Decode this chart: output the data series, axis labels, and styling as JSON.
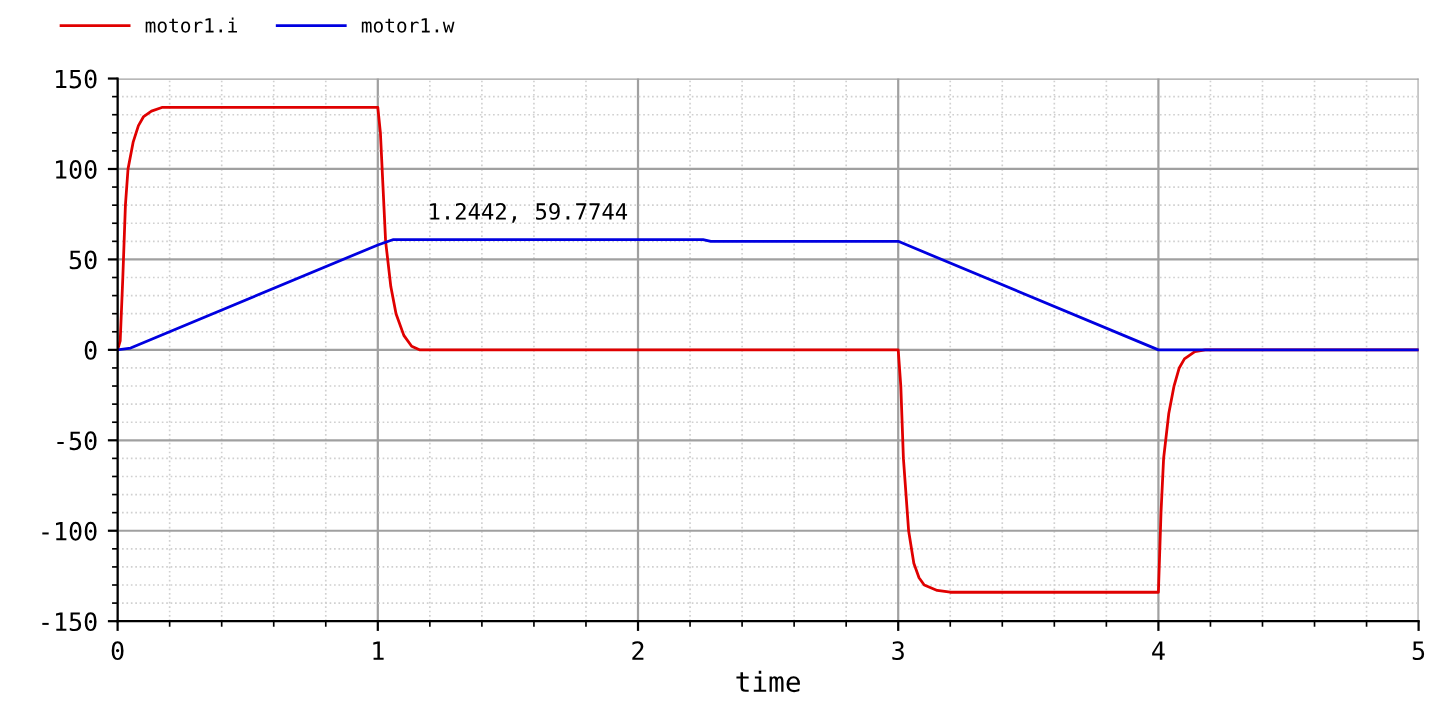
{
  "chart_data": {
    "type": "line",
    "xlabel": "time",
    "xlim": [
      0,
      5
    ],
    "ylim": [
      -150,
      150
    ],
    "xticks": [
      0,
      1,
      2,
      3,
      4,
      5
    ],
    "yticks": [
      -150,
      -100,
      -50,
      0,
      50,
      100,
      150
    ],
    "grid": true,
    "legend": "top left",
    "marker": "none",
    "line_style": "solid",
    "annotations": [
      {
        "text": "1.2442, 59.7744",
        "x": 1.2442,
        "y": 59.7744
      }
    ],
    "series": [
      {
        "name": "motor1.i",
        "color": "#e00000",
        "x": [
          0,
          0.01,
          0.02,
          0.03,
          0.04,
          0.06,
          0.08,
          0.1,
          0.13,
          0.17,
          0.2,
          1.0,
          1.01,
          1.02,
          1.03,
          1.05,
          1.07,
          1.1,
          1.13,
          1.16,
          3.0,
          3.01,
          3.02,
          3.04,
          3.06,
          3.08,
          3.1,
          3.15,
          3.2,
          4.0,
          4.01,
          4.02,
          4.04,
          4.06,
          4.08,
          4.1,
          4.14,
          4.18,
          5
        ],
        "values": [
          0,
          5,
          40,
          80,
          100,
          115,
          124,
          129,
          132,
          134,
          134,
          134,
          120,
          90,
          60,
          35,
          20,
          8,
          2,
          0,
          0,
          -20,
          -60,
          -100,
          -118,
          -126,
          -130,
          -133,
          -134,
          -134,
          -90,
          -60,
          -35,
          -20,
          -10,
          -5,
          -1,
          0,
          0
        ]
      },
      {
        "name": "motor1.w",
        "color": "#0000e0",
        "x": [
          0,
          0.05,
          1.0,
          1.06,
          2.25,
          2.28,
          3.0,
          4.0,
          5
        ],
        "values": [
          0,
          1,
          58,
          61,
          61,
          60,
          60,
          0,
          0
        ]
      }
    ]
  }
}
